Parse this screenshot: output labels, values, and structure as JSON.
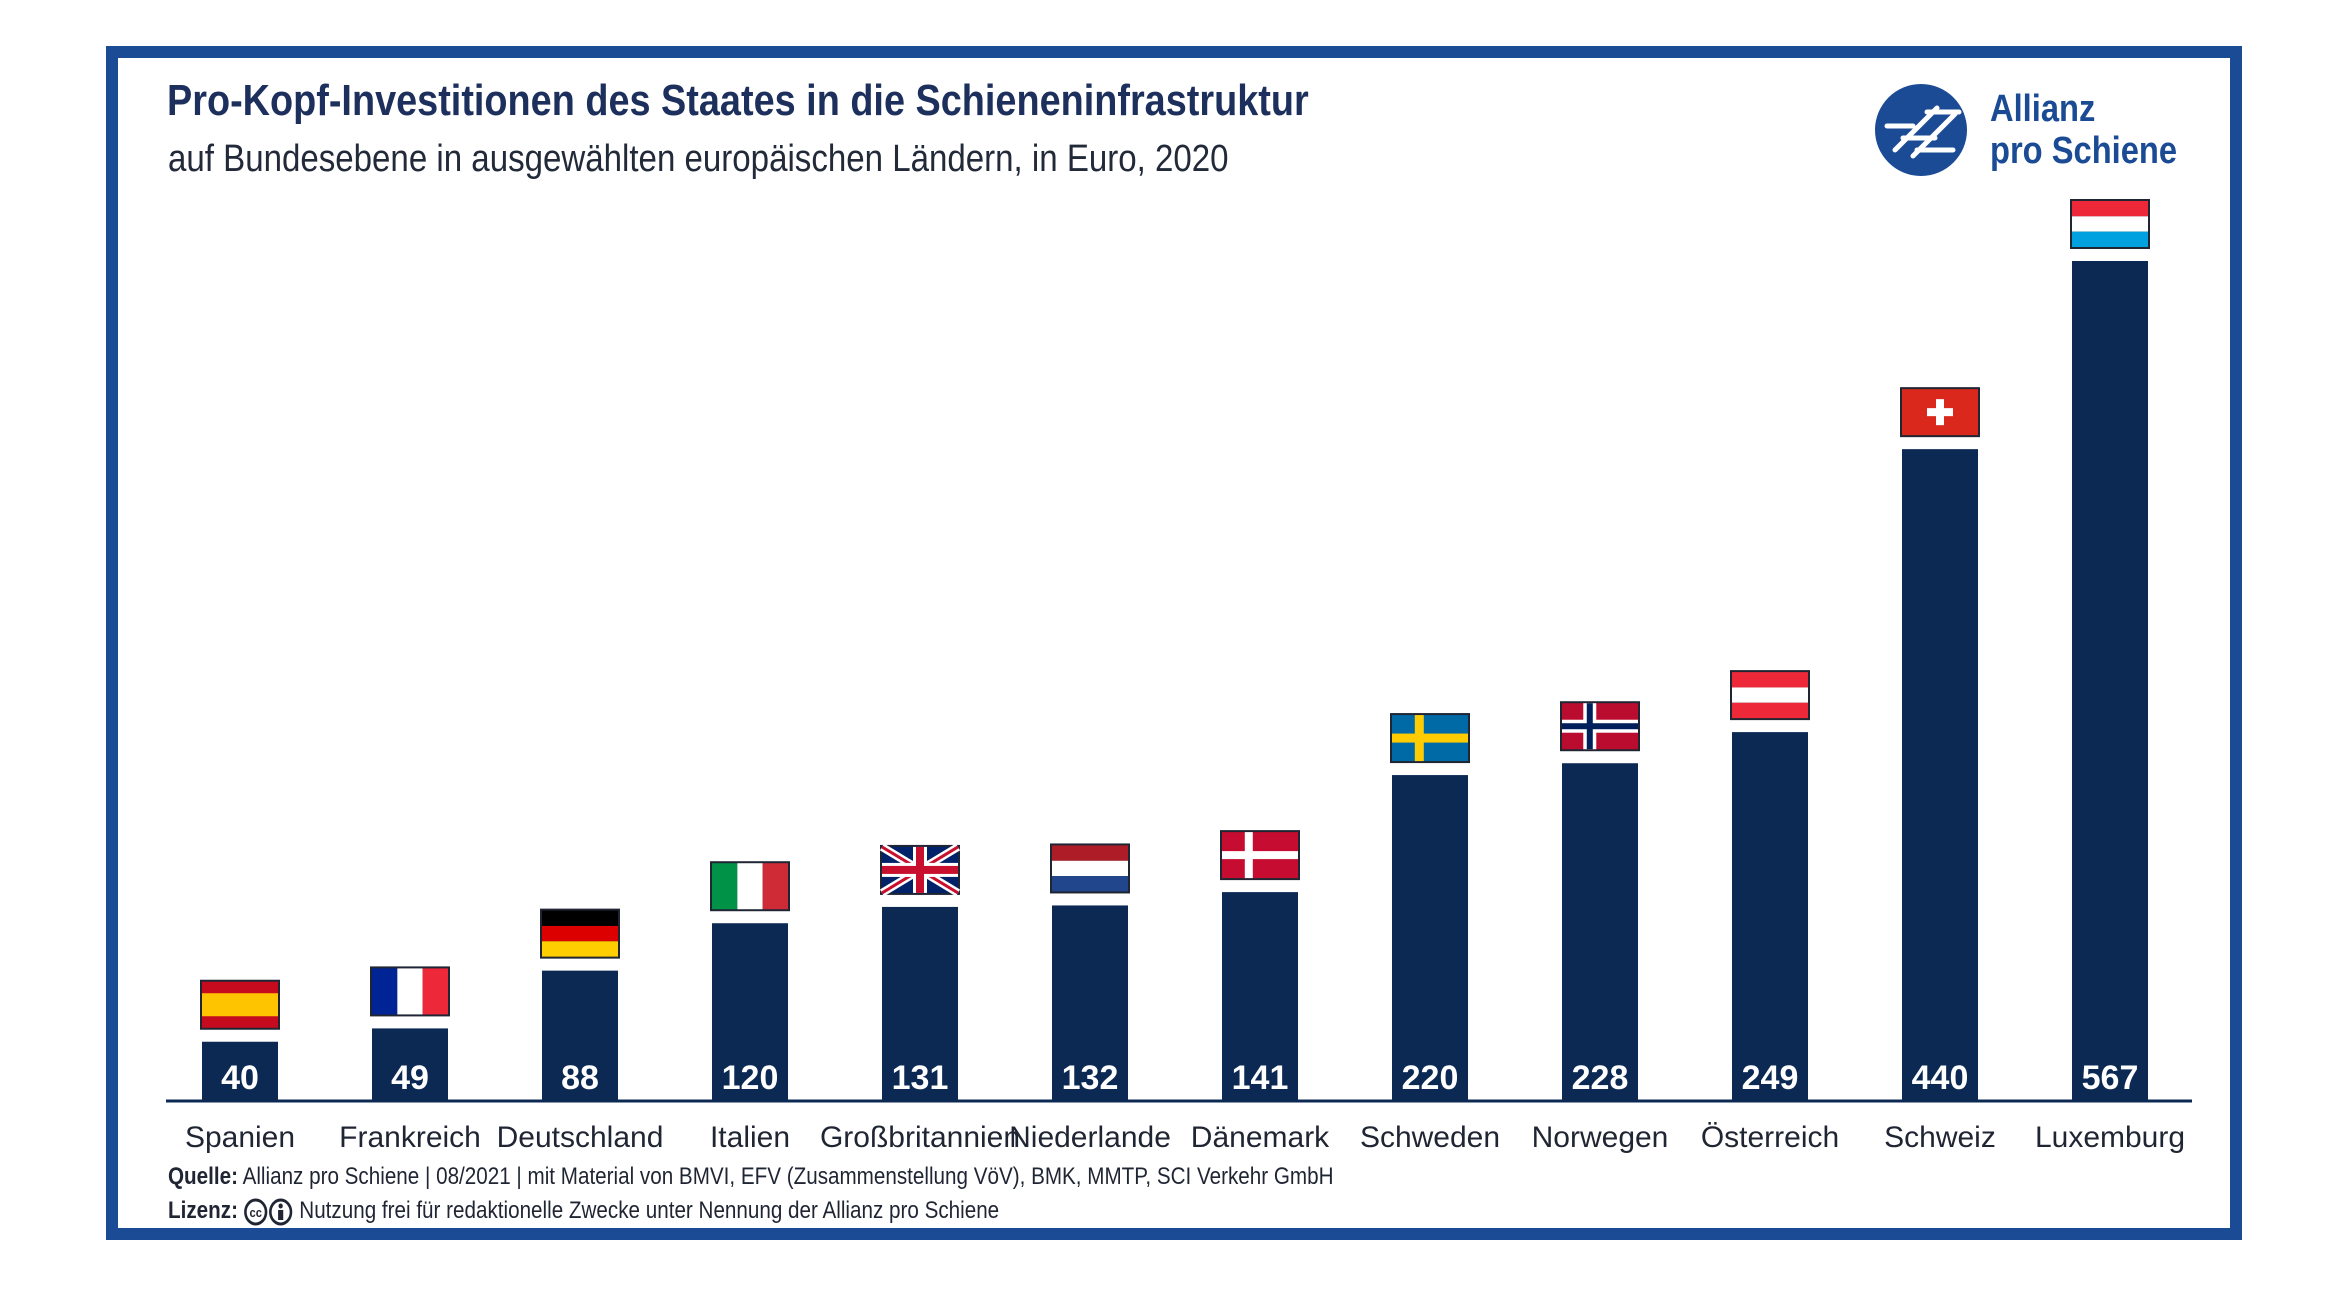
{
  "header": {
    "title": "Pro-Kopf-Investitionen des Staates in die Schieneninfrastruktur",
    "subtitle": "auf Bundesebene in ausgewählten europäischen Ländern, in Euro, 2020"
  },
  "logo": {
    "line1": "Allianz",
    "line2": "pro Schiene",
    "icon": "allianz-pro-schiene-logo"
  },
  "footer": {
    "source_label": "Quelle:",
    "source_text": "Allianz pro Schiene | 08/2021 | mit Material von BMVI, EFV (Zusammenstellung VöV), BMK, MMTP, SCI Verkehr GmbH",
    "license_label": "Lizenz:",
    "license_icons": [
      "cc-icon",
      "attribution-icon"
    ],
    "license_text": "Nutzung frei für redaktionelle Zwecke unter Nennung der Allianz pro Schiene"
  },
  "colors": {
    "bar": "#0c2954",
    "frame": "#1a4b94",
    "title": "#1d2f5c"
  },
  "chart_data": {
    "type": "bar",
    "categories": [
      "Spanien",
      "Frankreich",
      "Deutschland",
      "Italien",
      "Großbritannien",
      "Niederlande",
      "Dänemark",
      "Schweden",
      "Norwegen",
      "Österreich",
      "Schweiz",
      "Luxemburg"
    ],
    "values": [
      40,
      49,
      88,
      120,
      131,
      132,
      141,
      220,
      228,
      249,
      440,
      567
    ],
    "flags": [
      "spain-flag",
      "france-flag",
      "germany-flag",
      "italy-flag",
      "uk-flag",
      "netherlands-flag",
      "denmark-flag",
      "sweden-flag",
      "norway-flag",
      "austria-flag",
      "switzerland-flag",
      "luxembourg-flag"
    ],
    "title": "",
    "xlabel": "",
    "ylabel": "",
    "ylim": [
      0,
      600
    ],
    "grid": false,
    "legend": "none",
    "data_labels": "inside-bottom"
  }
}
